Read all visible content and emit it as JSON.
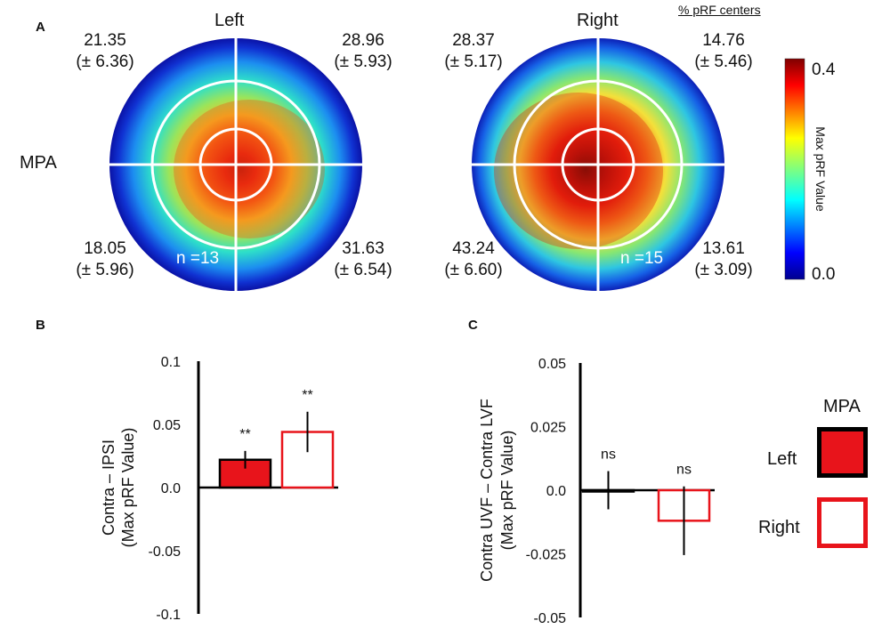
{
  "panel_labels": {
    "a": "A",
    "b": "B",
    "c": "C"
  },
  "panel_a": {
    "pct_header": "% pRF centers",
    "roi_label": "MPA",
    "left": {
      "title": "Left",
      "n_label": "n =13",
      "quadrants": {
        "upper_left": {
          "value": "21.35",
          "sd": "(± 6.36)"
        },
        "upper_right": {
          "value": "28.96",
          "sd": "(± 5.93)"
        },
        "lower_left": {
          "value": "18.05",
          "sd": "(± 5.96)"
        },
        "lower_right": {
          "value": "31.63",
          "sd": "(± 6.54)"
        }
      }
    },
    "right": {
      "title": "Right",
      "n_label": "n =15",
      "quadrants": {
        "upper_left": {
          "value": "28.37",
          "sd": "(± 5.17)"
        },
        "upper_right": {
          "value": "14.76",
          "sd": "(± 5.46)"
        },
        "lower_left": {
          "value": "43.24",
          "sd": "(± 6.60)"
        },
        "lower_right": {
          "value": "13.61",
          "sd": "(± 3.09)"
        }
      }
    },
    "colorbar": {
      "label": "Max pRF Value",
      "max_label": "0.4",
      "min_label": "0.0",
      "range": [
        0.0,
        0.4
      ]
    }
  },
  "chart_data": [
    {
      "type": "bar",
      "panel": "B",
      "ylabel_line1": "Contra – IPSI",
      "ylabel_line2": "(Max pRF Value)",
      "ylim": [
        -0.1,
        0.1
      ],
      "yticks": [
        "0.1",
        "0.05",
        "0.0",
        "-0.05",
        "-0.1"
      ],
      "ytick_values": [
        0.1,
        0.05,
        0.0,
        -0.05,
        -0.1
      ],
      "categories": [
        "Left",
        "Right"
      ],
      "series": [
        {
          "name": "Left",
          "value": 0.022,
          "error": 0.007,
          "sig": "**",
          "fill": "#e8141b",
          "stroke": "#000000"
        },
        {
          "name": "Right",
          "value": 0.044,
          "error": 0.016,
          "sig": "**",
          "fill": "#ffffff",
          "stroke": "#e8141b"
        }
      ]
    },
    {
      "type": "bar",
      "panel": "C",
      "ylabel_line1": "Contra UVF – Contra LVF",
      "ylabel_line2": "(Max pRF Value)",
      "ylim": [
        -0.05,
        0.05
      ],
      "yticks": [
        "0.05",
        "0.025",
        "0.0",
        "-0.025",
        "-0.05"
      ],
      "ytick_values": [
        0.05,
        0.025,
        0.0,
        -0.025,
        -0.05
      ],
      "categories": [
        "Left",
        "Right"
      ],
      "series": [
        {
          "name": "Left",
          "value": 0.0,
          "error": 0.0075,
          "sig": "ns",
          "fill": "#e8141b",
          "stroke": "#000000"
        },
        {
          "name": "Right",
          "value": -0.012,
          "error": 0.0135,
          "sig": "ns",
          "fill": "#ffffff",
          "stroke": "#e8141b"
        }
      ]
    }
  ],
  "legend": {
    "title": "MPA",
    "items": [
      {
        "label": "Left",
        "fill": "#e8141b",
        "stroke": "#000000"
      },
      {
        "label": "Right",
        "fill": "#ffffff",
        "stroke": "#e8141b"
      }
    ]
  }
}
